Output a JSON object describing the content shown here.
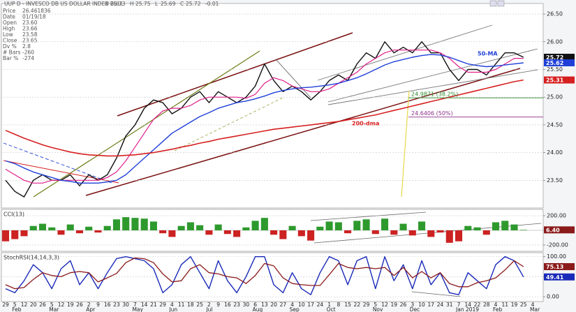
{
  "header": {
    "title": "UUP D - INVESCO DB US DOLLAR INDEX BULL",
    "quote": [
      "O",
      "25.73",
      "H",
      "25.75",
      "L",
      "25.69",
      "C",
      "25.72",
      "-0.01"
    ],
    "info": [
      [
        "Price",
        "26.461836"
      ],
      [
        "Date",
        "01/19/18"
      ],
      [
        "Open",
        "23.60"
      ],
      [
        "High",
        "23.66"
      ],
      [
        "Low",
        "23.58"
      ],
      [
        "Close",
        "23.65"
      ],
      [
        "Dv %",
        "2.8"
      ],
      [
        "# Bars",
        "-260"
      ],
      [
        "Bar %",
        "-274"
      ]
    ]
  },
  "chart_data": [
    {
      "type": "line",
      "categories": [
        "29",
        "5",
        "12",
        "20",
        "26",
        "5",
        "12",
        "19",
        "26",
        "2",
        "9",
        "16",
        "23",
        "30",
        "7",
        "14",
        "21",
        "29",
        "4",
        "11",
        "18",
        "25",
        "2",
        "9",
        "16",
        "23",
        "30",
        "6",
        "13",
        "20",
        "27",
        "4",
        "10",
        "17",
        "24",
        "1",
        "8",
        "15",
        "22",
        "29",
        "5",
        "12",
        "19",
        "26",
        "3",
        "10",
        "17",
        "24",
        "31",
        "7",
        "14",
        "22",
        "28",
        "4",
        "11",
        "19",
        "25",
        "4"
      ],
      "months": [
        null,
        "Feb",
        null,
        null,
        null,
        "Mar",
        null,
        null,
        null,
        "Apr",
        null,
        null,
        null,
        null,
        "May",
        null,
        null,
        null,
        "Jun",
        null,
        null,
        null,
        "Jul",
        null,
        null,
        null,
        null,
        "Aug",
        null,
        null,
        null,
        "Sep",
        null,
        null,
        null,
        "Oct",
        null,
        null,
        null,
        null,
        "Nov",
        null,
        null,
        null,
        "Dec",
        null,
        null,
        null,
        null,
        "Jan 2019",
        null,
        null,
        null,
        "Feb",
        null,
        null,
        null,
        "Mar"
      ],
      "ylim": [
        23.0,
        26.69
      ],
      "yticks": [
        {
          "value": 23.5,
          "label": "23.50"
        },
        {
          "value": 24,
          "label": "24.00"
        },
        {
          "value": 24.5,
          "label": "24.50"
        },
        {
          "value": 25,
          "label": "25.00"
        },
        {
          "value": 25.5,
          "label": "25.50"
        },
        {
          "value": 26,
          "label": "26.00"
        },
        {
          "value": 26.5,
          "label": "26.50"
        }
      ],
      "grid": true,
      "series": [
        {
          "color": "#111111",
          "width": 1.4,
          "tag": true,
          "values": [
            23.5,
            23.3,
            23.2,
            23.5,
            23.6,
            23.5,
            23.5,
            23.6,
            23.4,
            23.6,
            23.5,
            23.6,
            23.9,
            24.3,
            24.5,
            24.8,
            24.95,
            24.9,
            24.7,
            24.8,
            25.0,
            25.1,
            24.9,
            25.1,
            25.0,
            24.9,
            25.0,
            25.2,
            25.6,
            25.3,
            25.1,
            25.2,
            25.1,
            24.95,
            25.1,
            25.3,
            25.4,
            25.3,
            25.6,
            25.8,
            25.7,
            26.0,
            25.8,
            25.9,
            25.8,
            26.0,
            25.8,
            25.8,
            25.5,
            25.3,
            25.5,
            25.5,
            25.4,
            25.6,
            25.8,
            25.8,
            25.72,
            null
          ]
        },
        {
          "color": "#e0208a",
          "width": 1.2,
          "values": [
            23.7,
            23.6,
            23.5,
            23.45,
            23.45,
            23.5,
            23.5,
            23.5,
            23.5,
            23.5,
            23.5,
            23.55,
            23.65,
            23.85,
            24.1,
            24.35,
            24.6,
            24.75,
            24.8,
            24.8,
            24.85,
            24.95,
            25.0,
            25.0,
            25.0,
            25.0,
            24.98,
            25.05,
            25.25,
            25.35,
            25.3,
            25.2,
            25.15,
            25.1,
            25.1,
            25.15,
            25.25,
            25.35,
            25.45,
            25.6,
            25.7,
            25.8,
            25.85,
            25.85,
            25.85,
            25.85,
            25.85,
            25.8,
            25.7,
            25.55,
            25.45,
            25.45,
            25.45,
            25.5,
            25.6,
            25.7,
            25.7,
            null
          ]
        },
        {
          "name": "50-MA",
          "color": "#1f3fd8",
          "width": 1.4,
          "tag": true,
          "values": [
            23.85,
            23.8,
            23.72,
            23.65,
            23.6,
            23.55,
            23.5,
            23.48,
            23.45,
            23.45,
            23.45,
            23.47,
            23.5,
            23.6,
            23.75,
            23.9,
            24.05,
            24.2,
            24.35,
            24.45,
            24.55,
            24.65,
            24.72,
            24.8,
            24.85,
            24.9,
            24.93,
            24.97,
            25.02,
            25.08,
            25.12,
            25.15,
            25.17,
            25.18,
            25.2,
            25.22,
            25.25,
            25.3,
            25.35,
            25.42,
            25.5,
            25.58,
            25.64,
            25.68,
            25.72,
            25.75,
            25.77,
            25.76,
            25.72,
            25.66,
            25.6,
            25.57,
            25.55,
            25.56,
            25.58,
            25.6,
            25.62,
            null
          ]
        },
        {
          "name": "200-dma",
          "color": "#d61f1f",
          "width": 1.6,
          "tag": true,
          "values": [
            24.4,
            24.33,
            24.26,
            24.2,
            24.14,
            24.09,
            24.05,
            24.01,
            23.98,
            23.96,
            23.95,
            23.94,
            23.94,
            23.95,
            23.96,
            23.98,
            24.0,
            24.03,
            24.06,
            24.1,
            24.13,
            24.17,
            24.2,
            24.24,
            24.27,
            24.3,
            24.33,
            24.36,
            24.39,
            24.42,
            24.44,
            24.46,
            24.48,
            24.5,
            24.52,
            24.54,
            24.56,
            24.59,
            24.62,
            24.65,
            24.68,
            24.72,
            24.76,
            24.8,
            24.84,
            24.88,
            24.92,
            24.96,
            25.0,
            25.04,
            25.08,
            25.12,
            25.16,
            25.2,
            25.24,
            25.28,
            25.31,
            null
          ]
        }
      ],
      "fib_levels": [
        {
          "value": 24.9871,
          "label": "24.9871 (38.2%)",
          "color": "#2e8b2e"
        },
        {
          "value": 24.6406,
          "label": "24.6406 (50%)",
          "color": "#8b2e8b"
        }
      ]
    },
    {
      "type": "bar",
      "title": "CCI(13)",
      "ylim": [
        -286,
        286
      ],
      "yticks": [
        {
          "value": -200,
          "label": "-200.00"
        },
        {
          "value": 200,
          "label": "200.00"
        }
      ],
      "grid": true,
      "color": "#2e9a2e",
      "negative_color": "#cc2222",
      "values": [
        -150,
        -120,
        -80,
        60,
        90,
        40,
        -60,
        80,
        -40,
        50,
        -30,
        60,
        150,
        180,
        170,
        160,
        120,
        -40,
        -90,
        60,
        110,
        70,
        -60,
        80,
        -50,
        -90,
        40,
        130,
        170,
        -60,
        -120,
        60,
        -80,
        -140,
        50,
        120,
        110,
        -40,
        130,
        150,
        -50,
        160,
        -60,
        90,
        -70,
        120,
        -90,
        -30,
        -170,
        -150,
        60,
        40,
        -60,
        110,
        130,
        80,
        6.4,
        null
      ],
      "current": {
        "value": 6.4,
        "label": "6.40",
        "color": "#8b1a1a"
      }
    },
    {
      "type": "line",
      "title": "StochRSI(14,14,3,3)",
      "ylim": [
        -12,
        110
      ],
      "yticks": [
        {
          "value": 0,
          "label": "0.00"
        },
        {
          "value": 50,
          "label": "50.00"
        },
        {
          "value": 100,
          "label": "100.00"
        }
      ],
      "grid": true,
      "series": [
        {
          "color": "#1a2ab8",
          "width": 1.4,
          "tag": true,
          "values": [
            20,
            10,
            40,
            80,
            60,
            20,
            70,
            90,
            30,
            60,
            20,
            60,
            95,
            100,
            95,
            90,
            70,
            10,
            30,
            80,
            100,
            60,
            20,
            90,
            40,
            10,
            50,
            100,
            100,
            30,
            10,
            60,
            20,
            5,
            60,
            100,
            90,
            30,
            90,
            100,
            20,
            100,
            40,
            80,
            20,
            90,
            30,
            60,
            10,
            5,
            60,
            40,
            20,
            80,
            100,
            90,
            49.41,
            null
          ]
        },
        {
          "color": "#8b1a1a",
          "width": 1.3,
          "tag": true,
          "values": [
            30,
            20,
            23,
            43,
            60,
            53,
            50,
            60,
            63,
            60,
            37,
            47,
            58,
            85,
            97,
            95,
            85,
            57,
            37,
            40,
            70,
            80,
            60,
            57,
            50,
            47,
            33,
            53,
            83,
            77,
            47,
            33,
            30,
            28,
            28,
            55,
            83,
            73,
            70,
            73,
            70,
            73,
            53,
            73,
            47,
            63,
            47,
            60,
            33,
            25,
            25,
            35,
            40,
            47,
            67,
            90,
            75.13,
            null
          ]
        }
      ]
    }
  ]
}
